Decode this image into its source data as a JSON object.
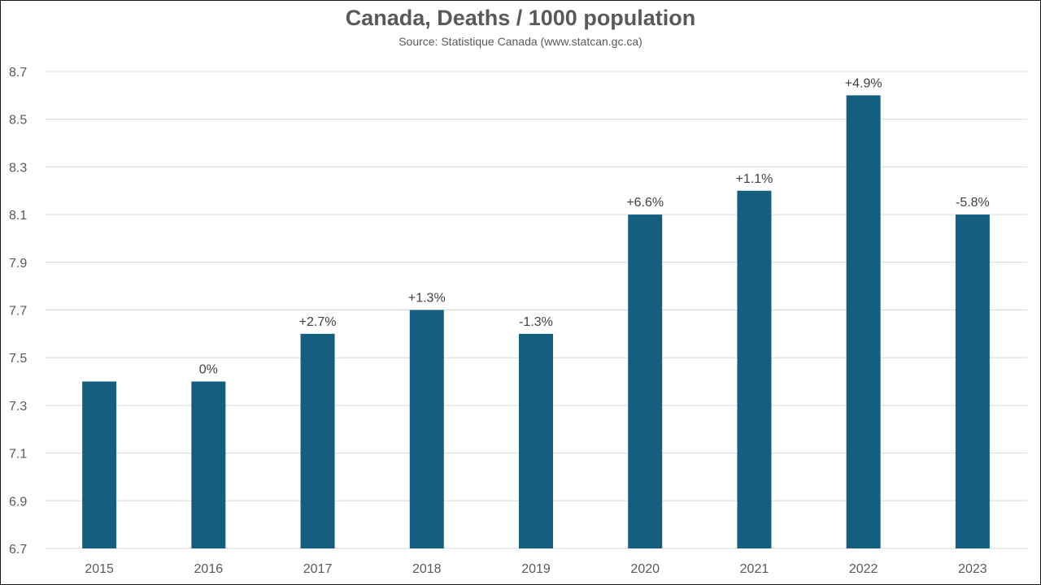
{
  "chart_data": {
    "type": "bar",
    "title": "Canada, Deaths / 1000 population",
    "subtitle": "Source: Statistique Canada (www.statcan.gc.ca)",
    "categories": [
      "2015",
      "2016",
      "2017",
      "2018",
      "2019",
      "2020",
      "2021",
      "2022",
      "2023"
    ],
    "values": [
      7.4,
      7.4,
      7.6,
      7.7,
      7.6,
      8.1,
      8.2,
      8.6,
      8.1
    ],
    "data_labels": [
      "",
      "0%",
      "+2.7%",
      "+1.3%",
      "-1.3%",
      "+6.6%",
      "+1.1%",
      "+4.9%",
      "-5.8%"
    ],
    "ylim": [
      6.7,
      8.7
    ],
    "yticks": [
      "6.7",
      "6.9",
      "7.1",
      "7.3",
      "7.5",
      "7.7",
      "7.9",
      "8.1",
      "8.3",
      "8.5",
      "8.7"
    ],
    "grid": true,
    "legend": "none",
    "bar_color": "#165e80",
    "grid_color": "#d9d9d9"
  }
}
